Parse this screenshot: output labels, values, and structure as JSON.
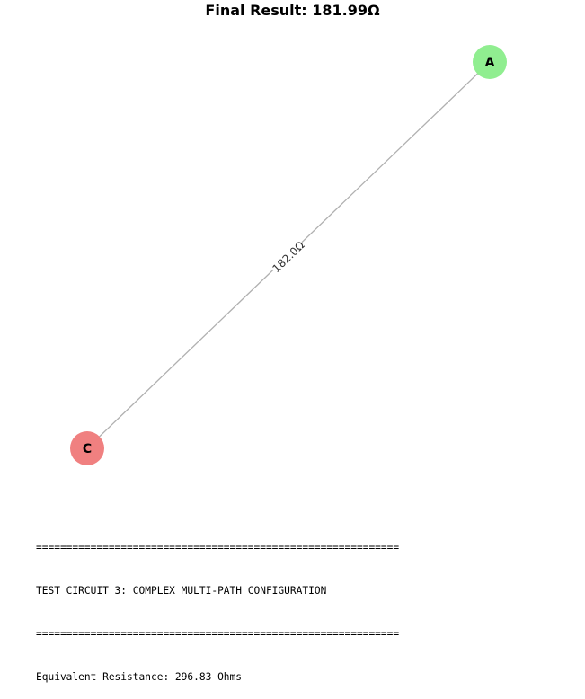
{
  "title": "Final Result: 181.99Ω",
  "graph": {
    "nodes": [
      {
        "id": "A",
        "label": "A",
        "color": "#90ee90"
      },
      {
        "id": "C",
        "label": "C",
        "color": "#f08080"
      }
    ],
    "edges": [
      {
        "from": "A",
        "to": "C",
        "label": "182.0Ω",
        "color": "#b0b0b0"
      }
    ]
  },
  "console": {
    "separator": "============================================================",
    "heading": "TEST CIRCUIT 3: COMPLEX MULTI-PATH CONFIGURATION",
    "result": "Equivalent Resistance: 296.83 Ohms"
  }
}
